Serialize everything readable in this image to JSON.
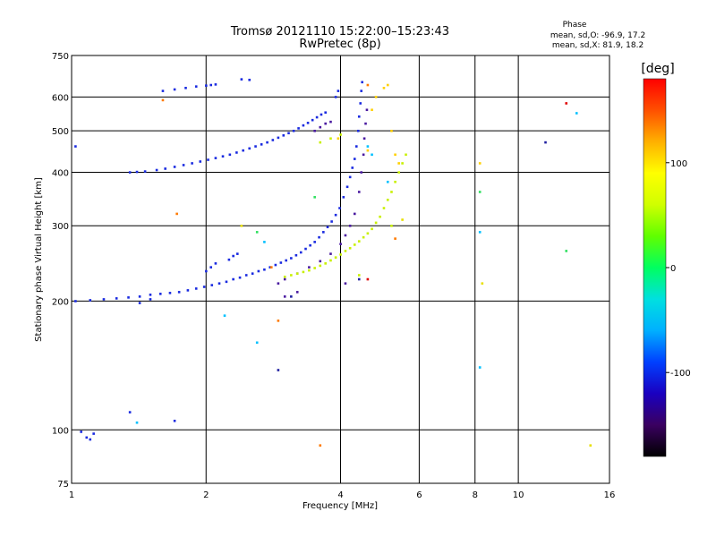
{
  "chart_data": {
    "type": "scatter",
    "title": "Tromsø 20121110 15:22:00–15:23:43",
    "subtitle": "RwPretec (8p)",
    "xlabel": "Frequency [MHz]",
    "ylabel": "Stationary phase Virtual Height [km]",
    "x_scale": "log",
    "y_scale": "log",
    "xlim": [
      1,
      16
    ],
    "ylim": [
      75,
      750
    ],
    "x_ticks": [
      1,
      2,
      4,
      6,
      8,
      10,
      16
    ],
    "y_ticks": [
      75,
      100,
      200,
      300,
      400,
      500,
      600,
      750
    ],
    "grid": true,
    "stats": {
      "heading": "Phase",
      "line_o": "mean, sd,O: -96.9, 17.2",
      "line_x": "mean, sd,X:  81.9, 18.2"
    },
    "colorbar": {
      "label": "[deg]",
      "range": [
        -180,
        180
      ],
      "ticks": [
        100,
        0,
        -100
      ],
      "colormap": [
        "#000000",
        "#3a0060",
        "#1a00c0",
        "#0040ff",
        "#00b0ff",
        "#00e0e0",
        "#00ff60",
        "#60ff00",
        "#d0ff00",
        "#ffff00",
        "#ffb000",
        "#ff5000",
        "#ff0000"
      ]
    },
    "series": [
      {
        "color": "#1a2be0",
        "points": [
          [
            1.02,
            200
          ],
          [
            1.1,
            201
          ],
          [
            1.18,
            202
          ],
          [
            1.26,
            203
          ],
          [
            1.34,
            204
          ],
          [
            1.42,
            205
          ],
          [
            1.5,
            207
          ],
          [
            1.58,
            208
          ],
          [
            1.66,
            209
          ],
          [
            1.74,
            210
          ],
          [
            1.82,
            212
          ],
          [
            1.9,
            214
          ],
          [
            1.98,
            216
          ],
          [
            2.06,
            218
          ],
          [
            2.14,
            220
          ],
          [
            2.22,
            222
          ],
          [
            2.3,
            225
          ],
          [
            2.38,
            227
          ],
          [
            2.46,
            230
          ],
          [
            2.54,
            232
          ],
          [
            2.62,
            235
          ],
          [
            2.7,
            237
          ],
          [
            2.78,
            240
          ],
          [
            2.86,
            243
          ],
          [
            2.94,
            246
          ],
          [
            3.02,
            249
          ],
          [
            3.1,
            252
          ],
          [
            3.18,
            256
          ],
          [
            3.26,
            260
          ],
          [
            3.34,
            265
          ],
          [
            3.42,
            270
          ],
          [
            3.5,
            275
          ],
          [
            3.58,
            282
          ],
          [
            3.66,
            290
          ],
          [
            3.74,
            298
          ],
          [
            3.82,
            307
          ],
          [
            3.9,
            318
          ],
          [
            3.98,
            330
          ],
          [
            4.06,
            350
          ],
          [
            4.14,
            370
          ],
          [
            4.2,
            390
          ],
          [
            4.25,
            410
          ],
          [
            4.3,
            430
          ],
          [
            4.34,
            460
          ],
          [
            4.38,
            500
          ],
          [
            4.4,
            540
          ],
          [
            4.43,
            580
          ],
          [
            4.45,
            620
          ],
          [
            4.47,
            650
          ],
          [
            1.35,
            400
          ],
          [
            1.4,
            401
          ],
          [
            1.46,
            402
          ],
          [
            1.55,
            405
          ],
          [
            1.62,
            408
          ],
          [
            1.7,
            412
          ],
          [
            1.78,
            416
          ],
          [
            1.86,
            420
          ],
          [
            1.94,
            424
          ],
          [
            2.02,
            428
          ],
          [
            2.1,
            432
          ],
          [
            2.18,
            436
          ],
          [
            2.26,
            440
          ],
          [
            2.34,
            445
          ],
          [
            2.42,
            450
          ],
          [
            2.5,
            455
          ],
          [
            2.58,
            460
          ],
          [
            2.66,
            465
          ],
          [
            2.74,
            470
          ],
          [
            2.82,
            476
          ],
          [
            2.9,
            482
          ],
          [
            2.98,
            488
          ],
          [
            3.06,
            494
          ],
          [
            3.14,
            500
          ],
          [
            3.22,
            507
          ],
          [
            3.3,
            515
          ],
          [
            3.38,
            522
          ],
          [
            3.46,
            530
          ],
          [
            3.54,
            538
          ],
          [
            3.62,
            546
          ],
          [
            3.7,
            552
          ],
          [
            3.9,
            600
          ],
          [
            3.95,
            620
          ],
          [
            1.6,
            620
          ],
          [
            1.7,
            625
          ],
          [
            1.8,
            630
          ],
          [
            1.9,
            635
          ],
          [
            2.0,
            638
          ],
          [
            2.05,
            640
          ],
          [
            2.1,
            642
          ],
          [
            2.4,
            660
          ],
          [
            2.5,
            658
          ],
          [
            1.02,
            460
          ],
          [
            1.05,
            99
          ],
          [
            1.08,
            96
          ],
          [
            1.1,
            95
          ],
          [
            1.12,
            98
          ],
          [
            1.35,
            110
          ],
          [
            1.7,
            105
          ],
          [
            1.42,
            198
          ],
          [
            1.5,
            202
          ],
          [
            2.0,
            235
          ],
          [
            2.05,
            240
          ],
          [
            2.1,
            245
          ],
          [
            2.25,
            250
          ],
          [
            2.3,
            255
          ],
          [
            2.35,
            258
          ]
        ]
      },
      {
        "color": "#4a1aa0",
        "points": [
          [
            2.9,
            220
          ],
          [
            3.0,
            225
          ],
          [
            3.2,
            232
          ],
          [
            3.4,
            240
          ],
          [
            3.6,
            248
          ],
          [
            3.8,
            258
          ],
          [
            4.0,
            272
          ],
          [
            4.1,
            285
          ],
          [
            4.2,
            300
          ],
          [
            4.3,
            320
          ],
          [
            4.4,
            360
          ],
          [
            4.45,
            400
          ],
          [
            4.5,
            440
          ],
          [
            4.52,
            480
          ],
          [
            4.55,
            520
          ],
          [
            4.58,
            560
          ],
          [
            3.5,
            500
          ],
          [
            3.6,
            510
          ],
          [
            3.7,
            520
          ],
          [
            3.8,
            525
          ],
          [
            3.0,
            205
          ],
          [
            3.2,
            210
          ],
          [
            4.1,
            220
          ]
        ]
      },
      {
        "color": "#c8f000",
        "points": [
          [
            3.0,
            228
          ],
          [
            3.1,
            230
          ],
          [
            3.2,
            232
          ],
          [
            3.3,
            234
          ],
          [
            3.4,
            236
          ],
          [
            3.5,
            239
          ],
          [
            3.6,
            242
          ],
          [
            3.7,
            245
          ],
          [
            3.8,
            249
          ],
          [
            3.9,
            253
          ],
          [
            4.0,
            257
          ],
          [
            4.1,
            262
          ],
          [
            4.2,
            266
          ],
          [
            4.3,
            271
          ],
          [
            4.4,
            276
          ],
          [
            4.5,
            282
          ],
          [
            4.6,
            288
          ],
          [
            4.7,
            295
          ],
          [
            4.8,
            305
          ],
          [
            4.9,
            315
          ],
          [
            5.0,
            330
          ],
          [
            5.1,
            345
          ],
          [
            5.2,
            360
          ],
          [
            5.3,
            380
          ],
          [
            5.4,
            400
          ],
          [
            5.5,
            420
          ],
          [
            5.6,
            440
          ],
          [
            3.6,
            470
          ],
          [
            3.8,
            480
          ],
          [
            4.0,
            490
          ],
          [
            4.4,
            230
          ],
          [
            5.2,
            300
          ]
        ]
      },
      {
        "color": "#ffd000",
        "points": [
          [
            4.7,
            560
          ],
          [
            4.8,
            600
          ],
          [
            5.0,
            630
          ],
          [
            5.1,
            640
          ],
          [
            5.2,
            500
          ],
          [
            4.6,
            450
          ],
          [
            5.3,
            440
          ],
          [
            5.4,
            420
          ],
          [
            3.95,
            480
          ],
          [
            8.2,
            420
          ]
        ]
      },
      {
        "color": "#ff7a00",
        "points": [
          [
            1.6,
            590
          ],
          [
            1.72,
            320
          ],
          [
            2.9,
            180
          ],
          [
            2.8,
            240
          ],
          [
            3.6,
            92
          ],
          [
            5.3,
            280
          ],
          [
            4.6,
            640
          ]
        ]
      },
      {
        "color": "#e00000",
        "points": [
          [
            12.8,
            580
          ],
          [
            4.6,
            225
          ]
        ]
      },
      {
        "color": "#00c0ff",
        "points": [
          [
            4.6,
            460
          ],
          [
            4.7,
            440
          ],
          [
            8.2,
            290
          ],
          [
            8.2,
            140
          ],
          [
            13.5,
            550
          ],
          [
            1.4,
            104
          ],
          [
            2.2,
            185
          ],
          [
            2.6,
            160
          ],
          [
            2.7,
            275
          ],
          [
            5.1,
            380
          ]
        ]
      },
      {
        "color": "#30e060",
        "points": [
          [
            8.2,
            360
          ],
          [
            12.8,
            262
          ],
          [
            3.5,
            350
          ],
          [
            2.6,
            290
          ]
        ]
      },
      {
        "color": "#e8e000",
        "points": [
          [
            14.5,
            92
          ],
          [
            8.3,
            220
          ],
          [
            2.4,
            300
          ],
          [
            5.5,
            310
          ]
        ]
      },
      {
        "color": "#2020a0",
        "points": [
          [
            11.5,
            470
          ],
          [
            2.9,
            138
          ],
          [
            4.4,
            225
          ],
          [
            3.1,
            205
          ]
        ]
      }
    ]
  }
}
